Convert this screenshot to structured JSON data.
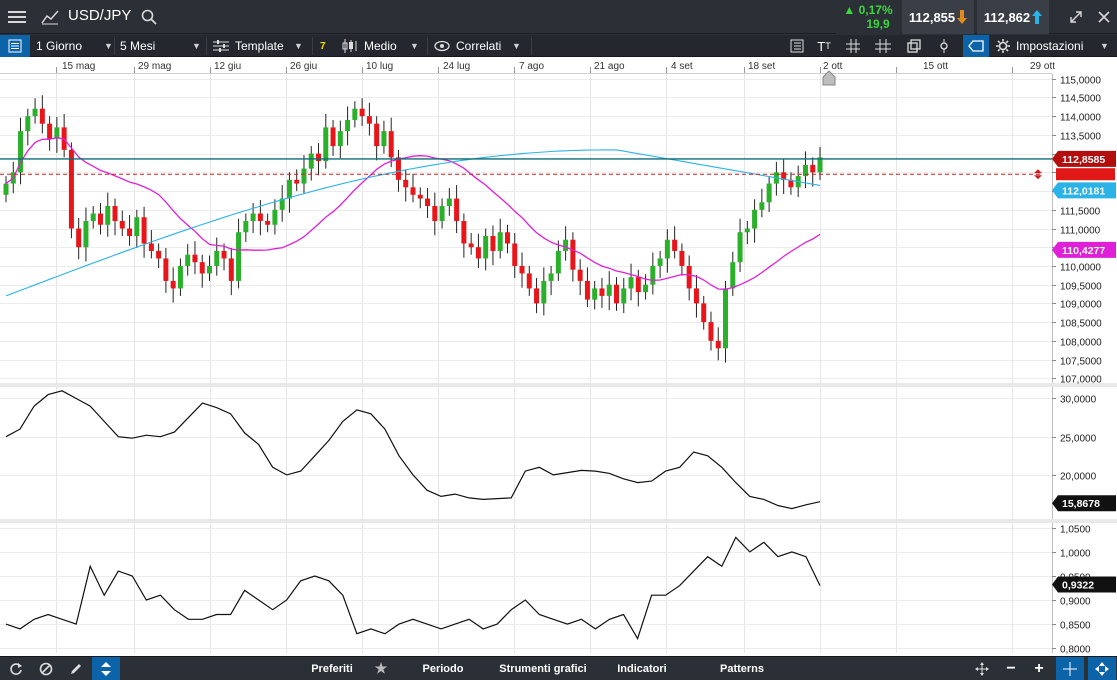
{
  "header": {
    "symbol": "USD/JPY",
    "change_percent": "0,17%",
    "change_points": "19,9",
    "sell_price": "112,855",
    "buy_price": "112,862"
  },
  "toolbar": {
    "interval": "1 Giorno",
    "range": "5 Mesi",
    "template": "Template",
    "indicator_count": "7",
    "chart_type": "Medio",
    "related": "Correlati",
    "settings": "Impostazioni"
  },
  "bottom": {
    "favorites": "Preferiti",
    "period": "Periodo",
    "tools": "Strumenti grafici",
    "indicators": "Indicatori",
    "patterns": "Patterns"
  },
  "colors": {
    "up": "#2ab02a",
    "down": "#e8161a",
    "ma_fast": "#2bb3e8",
    "ma_slow": "#e020d8",
    "price_line": "#0e6b78",
    "price_tag": "#b30d0d"
  },
  "chart_data": [
    {
      "type": "line",
      "panel": "price",
      "x_ticks": [
        "15 mag",
        "29 mag",
        "12 giu",
        "26 giu",
        "10 lug",
        "24 lug",
        "7 ago",
        "21 ago",
        "4 set",
        "18 set",
        "2 ott",
        "15 ott",
        "29 ott"
      ],
      "y_ticks": [
        "115,0000",
        "114,5000",
        "114,0000",
        "113,5000",
        "113,0000",
        "112,5000",
        "112,0000",
        "111,5000",
        "111,0000",
        "110,5000",
        "110,0000",
        "109,5000",
        "109,0000",
        "108,5000",
        "108,0000",
        "107,5000",
        "107,0000"
      ],
      "ylim": [
        106.9,
        115.1
      ],
      "last_price_label": "112,8585",
      "series": [
        {
          "values": [
            112.0181,
            112.0181
          ],
          "label": "112,0181"
        },
        {
          "values": [
            110.4277,
            110.4277
          ],
          "label": "110,4277"
        }
      ]
    },
    {
      "type": "line",
      "panel": "indicator-1",
      "y_ticks": [
        "30,0000",
        "25,0000",
        "20,0000"
      ],
      "last_value_label": "15,8678"
    },
    {
      "type": "line",
      "panel": "indicator-2",
      "y_ticks": [
        "1,0500",
        "1,0000",
        "0,9500",
        "0,9000",
        "0,8500",
        "0,8000"
      ],
      "last_value_label": "0,9322"
    }
  ]
}
